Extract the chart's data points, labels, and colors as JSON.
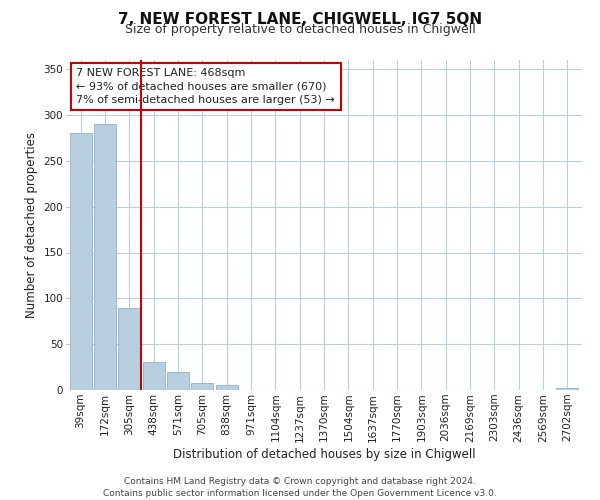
{
  "title": "7, NEW FOREST LANE, CHIGWELL, IG7 5QN",
  "subtitle": "Size of property relative to detached houses in Chigwell",
  "xlabel": "Distribution of detached houses by size in Chigwell",
  "ylabel": "Number of detached properties",
  "bar_color": "#b8cfe0",
  "bar_edge_color": "#7aaac8",
  "grid_color": "#b8cfe0",
  "background_color": "#ffffff",
  "bin_labels": [
    "39sqm",
    "172sqm",
    "305sqm",
    "438sqm",
    "571sqm",
    "705sqm",
    "838sqm",
    "971sqm",
    "1104sqm",
    "1237sqm",
    "1370sqm",
    "1504sqm",
    "1637sqm",
    "1770sqm",
    "1903sqm",
    "2036sqm",
    "2169sqm",
    "2303sqm",
    "2436sqm",
    "2569sqm",
    "2702sqm"
  ],
  "bar_heights": [
    280,
    290,
    90,
    31,
    20,
    8,
    5,
    0,
    0,
    0,
    0,
    0,
    0,
    0,
    0,
    0,
    0,
    0,
    0,
    0,
    2
  ],
  "vline_color": "#cc0000",
  "annotation_line1": "7 NEW FOREST LANE: 468sqm",
  "annotation_line2": "← 93% of detached houses are smaller (670)",
  "annotation_line3": "7% of semi-detached houses are larger (53) →",
  "annotation_box_color": "#ffffff",
  "annotation_box_edge_color": "#cc0000",
  "ylim": [
    0,
    360
  ],
  "yticks": [
    0,
    50,
    100,
    150,
    200,
    250,
    300,
    350
  ],
  "footer_line1": "Contains HM Land Registry data © Crown copyright and database right 2024.",
  "footer_line2": "Contains public sector information licensed under the Open Government Licence v3.0.",
  "title_fontsize": 11,
  "subtitle_fontsize": 9,
  "axis_label_fontsize": 8.5,
  "tick_fontsize": 7.5,
  "annotation_fontsize": 8,
  "footer_fontsize": 6.5
}
